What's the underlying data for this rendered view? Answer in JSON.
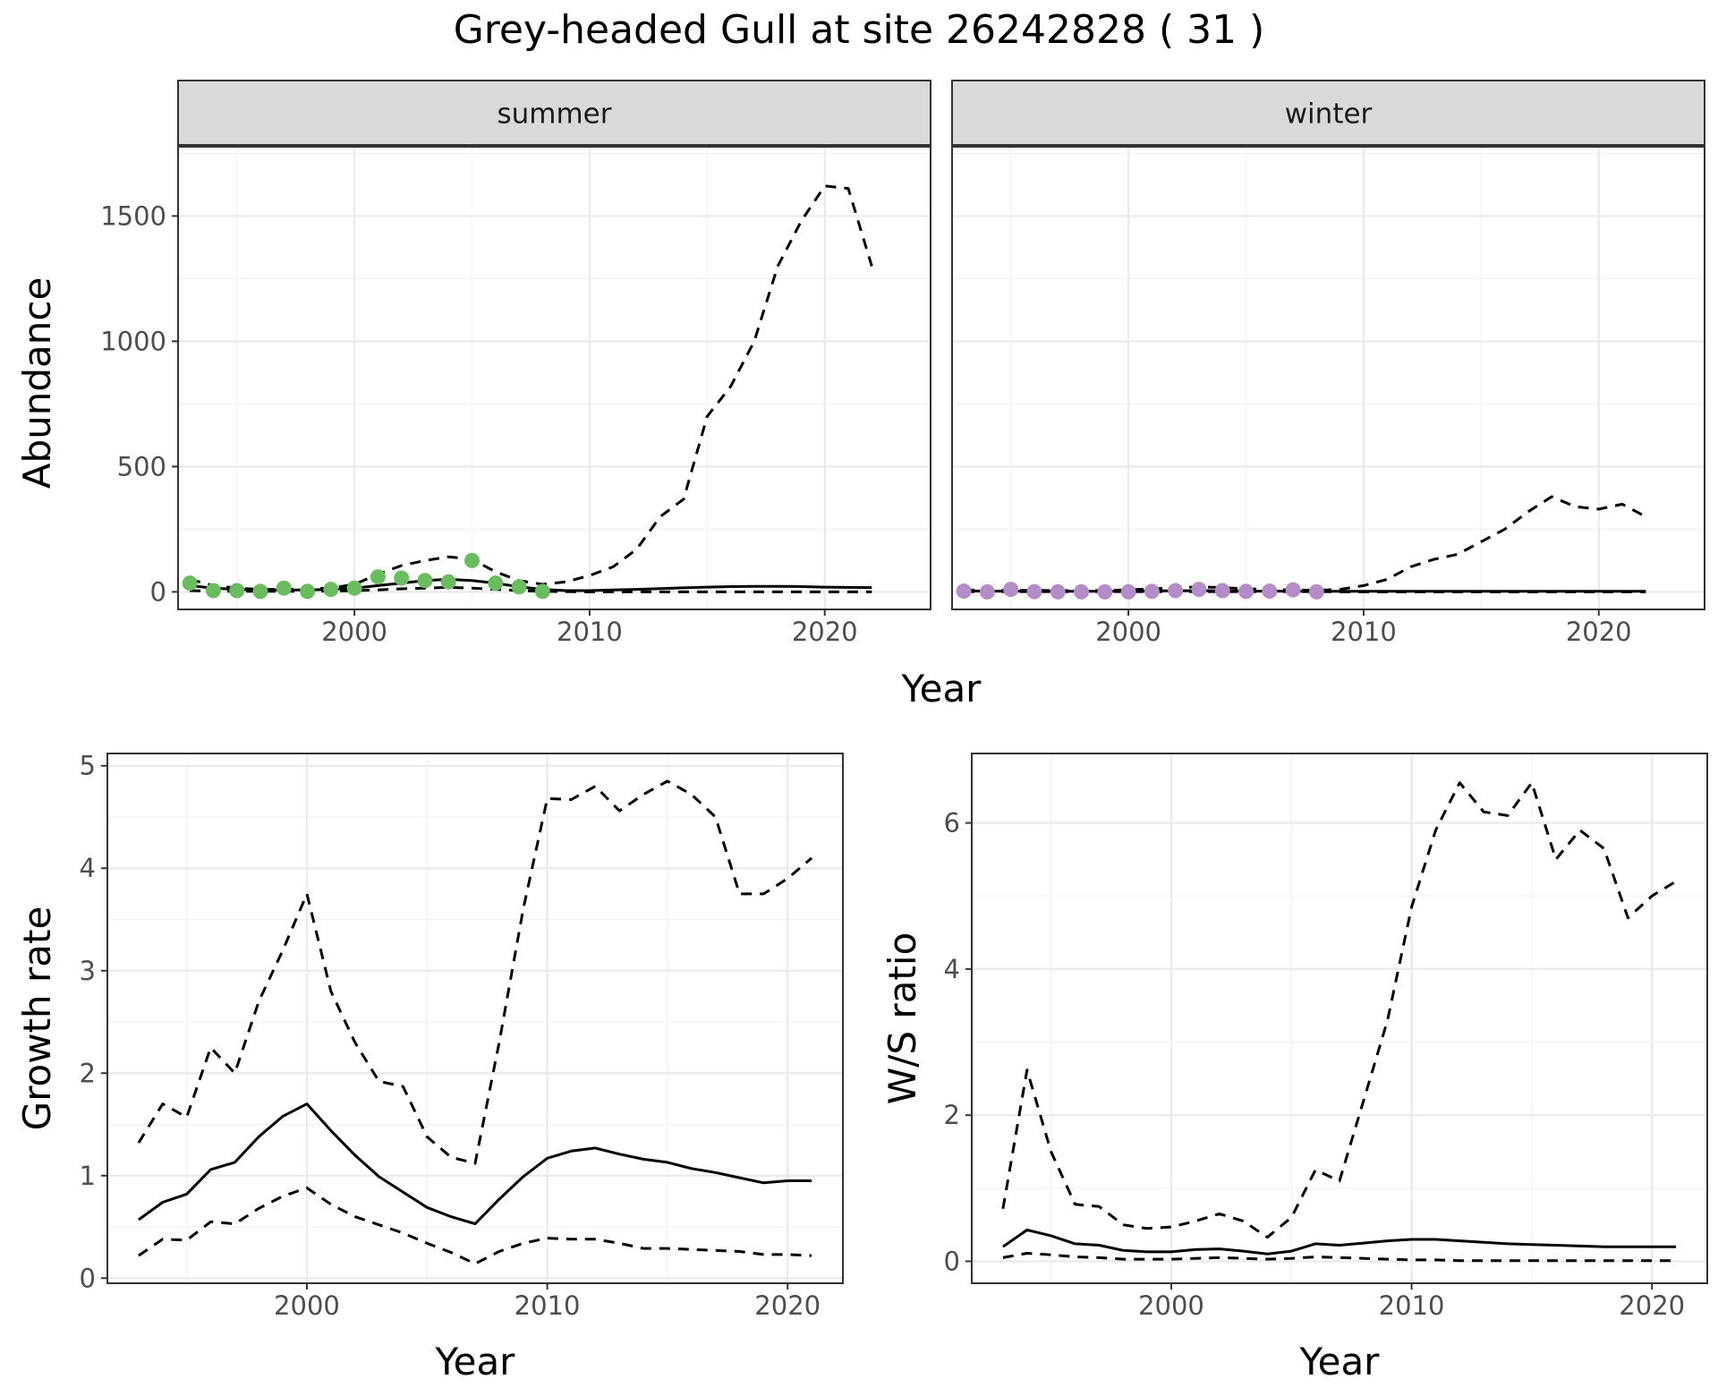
{
  "title": "Grey-headed Gull at site 26242828 ( 31 )",
  "colors": {
    "summer_points": "#6ABD5E",
    "winter_points": "#B48CC8",
    "line": "#000000",
    "grid_major": "#EBEBEB",
    "grid_minor": "#F2F2F2",
    "strip_fill": "#D9D9D9",
    "strip_border": "#333333",
    "axis_text": "#4D4D4D"
  },
  "chart_data": [
    {
      "type": "line",
      "name": "abundance",
      "facets": [
        "summer",
        "winter"
      ],
      "xlabel": "Year",
      "ylabel": "Abundance",
      "xlim": [
        1992.5,
        2024.5
      ],
      "ylim": [
        -70,
        1780
      ],
      "xticks": [
        2000,
        2010,
        2020
      ],
      "yticks": [
        0,
        500,
        1000,
        1500
      ],
      "grid": true,
      "panels": [
        {
          "strip": "summer",
          "point_color_key": "summer_points",
          "points": {
            "x": [
              1993,
              1994,
              1995,
              1996,
              1997,
              1998,
              1999,
              2000,
              2001,
              2002,
              2003,
              2004,
              2005,
              2006,
              2007,
              2008
            ],
            "y": [
              35,
              5,
              5,
              2,
              15,
              2,
              10,
              15,
              60,
              55,
              45,
              40,
              125,
              35,
              20,
              2
            ]
          },
          "series": [
            {
              "style": "solid",
              "x": [
                1993,
                1994,
                1995,
                1996,
                1997,
                1998,
                1999,
                2000,
                2001,
                2002,
                2003,
                2004,
                2005,
                2006,
                2007,
                2008,
                2009,
                2010,
                2011,
                2012,
                2013,
                2014,
                2015,
                2016,
                2017,
                2018,
                2019,
                2020,
                2021,
                2022
              ],
              "y": [
                25,
                15,
                10,
                8,
                8,
                8,
                10,
                15,
                25,
                35,
                45,
                50,
                45,
                35,
                20,
                10,
                5,
                5,
                8,
                10,
                13,
                16,
                19,
                21,
                22,
                22,
                21,
                19,
                18,
                17
              ]
            },
            {
              "style": "dashed",
              "x": [
                1993,
                1994,
                1995,
                1996,
                1997,
                1998,
                1999,
                2000,
                2001,
                2002,
                2003,
                2004,
                2005,
                2006,
                2007,
                2008,
                2009,
                2010,
                2011,
                2012,
                2013,
                2014,
                2015,
                2016,
                2017,
                2018,
                2019,
                2020,
                2021,
                2022
              ],
              "y": [
                50,
                25,
                15,
                10,
                10,
                12,
                15,
                30,
                70,
                105,
                125,
                140,
                130,
                80,
                45,
                30,
                40,
                65,
                100,
                170,
                300,
                370,
                700,
                820,
                1000,
                1300,
                1480,
                1620,
                1610,
                1300
              ]
            },
            {
              "style": "dashed",
              "x": [
                1993,
                1994,
                1995,
                1996,
                1997,
                1998,
                1999,
                2000,
                2001,
                2002,
                2003,
                2004,
                2005,
                2006,
                2007,
                2008,
                2009,
                2010,
                2011,
                2012,
                2013,
                2014,
                2015,
                2016,
                2017,
                2018,
                2019,
                2020,
                2021,
                2022
              ],
              "y": [
                5,
                3,
                2,
                2,
                2,
                2,
                3,
                5,
                8,
                12,
                15,
                18,
                15,
                10,
                5,
                2,
                1,
                0,
                0,
                0,
                0,
                0,
                0,
                0,
                0,
                0,
                0,
                0,
                0,
                0
              ]
            }
          ]
        },
        {
          "strip": "winter",
          "point_color_key": "winter_points",
          "points": {
            "x": [
              1993,
              1994,
              1995,
              1996,
              1997,
              1998,
              1999,
              2000,
              2001,
              2002,
              2003,
              2004,
              2005,
              2006,
              2007,
              2008
            ],
            "y": [
              3,
              0,
              10,
              1,
              0,
              0,
              0,
              0,
              2,
              5,
              10,
              5,
              2,
              3,
              8,
              0
            ]
          },
          "series": [
            {
              "style": "solid",
              "x": [
                1993,
                1994,
                1995,
                1996,
                1997,
                1998,
                1999,
                2000,
                2001,
                2002,
                2003,
                2004,
                2005,
                2006,
                2007,
                2008,
                2009,
                2010,
                2011,
                2012,
                2013,
                2014,
                2015,
                2016,
                2017,
                2018,
                2019,
                2020,
                2021,
                2022
              ],
              "y": [
                4,
                3,
                3,
                3,
                2,
                2,
                2,
                3,
                4,
                4,
                5,
                4,
                3,
                3,
                3,
                2,
                2,
                2,
                2,
                2,
                2,
                2,
                2,
                2,
                2,
                2,
                2,
                2,
                2,
                2
              ]
            },
            {
              "style": "dashed",
              "x": [
                1993,
                1994,
                1995,
                1996,
                1997,
                1998,
                1999,
                2000,
                2001,
                2002,
                2003,
                2004,
                2005,
                2006,
                2007,
                2008,
                2009,
                2010,
                2011,
                2012,
                2013,
                2014,
                2015,
                2016,
                2017,
                2018,
                2019,
                2020,
                2021,
                2022
              ],
              "y": [
                8,
                6,
                6,
                6,
                5,
                5,
                6,
                8,
                12,
                16,
                20,
                17,
                12,
                10,
                8,
                6,
                10,
                25,
                50,
                100,
                130,
                150,
                200,
                250,
                320,
                380,
                340,
                330,
                350,
                300
              ]
            },
            {
              "style": "dashed",
              "x": [
                1993,
                1994,
                1995,
                1996,
                1997,
                1998,
                1999,
                2000,
                2001,
                2002,
                2003,
                2004,
                2005,
                2006,
                2007,
                2008,
                2009,
                2010,
                2011,
                2012,
                2013,
                2014,
                2015,
                2016,
                2017,
                2018,
                2019,
                2020,
                2021,
                2022
              ],
              "y": [
                1,
                1,
                1,
                1,
                1,
                1,
                1,
                1,
                1,
                1,
                1,
                1,
                1,
                1,
                1,
                1,
                0,
                0,
                0,
                0,
                0,
                0,
                0,
                0,
                0,
                0,
                0,
                0,
                0,
                0
              ]
            }
          ]
        }
      ]
    },
    {
      "type": "line",
      "name": "growth",
      "xlabel": "Year",
      "ylabel": "Growth rate",
      "xlim": [
        1991.7,
        2022.3
      ],
      "ylim": [
        -0.05,
        5.12
      ],
      "xticks": [
        2000,
        2010,
        2020
      ],
      "yticks": [
        0,
        1,
        2,
        3,
        4,
        5
      ],
      "grid": true,
      "series": [
        {
          "style": "solid",
          "x": [
            1993,
            1994,
            1995,
            1996,
            1997,
            1998,
            1999,
            2000,
            2001,
            2002,
            2003,
            2004,
            2005,
            2006,
            2007,
            2008,
            2009,
            2010,
            2011,
            2012,
            2013,
            2014,
            2015,
            2016,
            2017,
            2018,
            2019,
            2020,
            2021
          ],
          "y": [
            0.57,
            0.74,
            0.82,
            1.06,
            1.13,
            1.38,
            1.58,
            1.7,
            1.44,
            1.2,
            0.99,
            0.84,
            0.69,
            0.6,
            0.53,
            0.77,
            0.99,
            1.17,
            1.24,
            1.27,
            1.21,
            1.16,
            1.13,
            1.07,
            1.03,
            0.98,
            0.93,
            0.95,
            0.95
          ]
        },
        {
          "style": "dashed",
          "x": [
            1993,
            1994,
            1995,
            1996,
            1997,
            1998,
            1999,
            2000,
            2001,
            2002,
            2003,
            2004,
            2005,
            2006,
            2007,
            2008,
            2009,
            2010,
            2011,
            2012,
            2013,
            2014,
            2015,
            2016,
            2017,
            2018,
            2019,
            2020,
            2021
          ],
          "y": [
            1.32,
            1.7,
            1.57,
            2.25,
            2.0,
            2.7,
            3.2,
            3.75,
            2.8,
            2.3,
            1.92,
            1.87,
            1.38,
            1.18,
            1.12,
            2.3,
            3.6,
            4.68,
            4.67,
            4.8,
            4.56,
            4.72,
            4.85,
            4.72,
            4.5,
            3.75,
            3.75,
            3.9,
            4.1
          ]
        },
        {
          "style": "dashed",
          "x": [
            1993,
            1994,
            1995,
            1996,
            1997,
            1998,
            1999,
            2000,
            2001,
            2002,
            2003,
            2004,
            2005,
            2006,
            2007,
            2008,
            2009,
            2010,
            2011,
            2012,
            2013,
            2014,
            2015,
            2016,
            2017,
            2018,
            2019,
            2020,
            2021
          ],
          "y": [
            0.22,
            0.38,
            0.37,
            0.55,
            0.53,
            0.68,
            0.8,
            0.88,
            0.72,
            0.6,
            0.52,
            0.44,
            0.34,
            0.25,
            0.14,
            0.26,
            0.34,
            0.39,
            0.38,
            0.38,
            0.34,
            0.29,
            0.29,
            0.28,
            0.27,
            0.26,
            0.23,
            0.23,
            0.22
          ]
        }
      ]
    },
    {
      "type": "line",
      "name": "ws_ratio",
      "xlabel": "Year",
      "ylabel": "W/S ratio",
      "xlim": [
        1991.7,
        2022.3
      ],
      "ylim": [
        -0.3,
        6.95
      ],
      "xticks": [
        2000,
        2010,
        2020
      ],
      "yticks": [
        0,
        2,
        4,
        6
      ],
      "grid": true,
      "series": [
        {
          "style": "solid",
          "x": [
            1993,
            1994,
            1995,
            1996,
            1997,
            1998,
            1999,
            2000,
            2001,
            2002,
            2003,
            2004,
            2005,
            2006,
            2007,
            2008,
            2009,
            2010,
            2011,
            2012,
            2013,
            2014,
            2015,
            2016,
            2017,
            2018,
            2019,
            2020,
            2021
          ],
          "y": [
            0.2,
            0.43,
            0.35,
            0.24,
            0.22,
            0.15,
            0.13,
            0.13,
            0.16,
            0.17,
            0.14,
            0.1,
            0.14,
            0.24,
            0.22,
            0.25,
            0.28,
            0.3,
            0.3,
            0.28,
            0.26,
            0.24,
            0.23,
            0.22,
            0.21,
            0.2,
            0.2,
            0.2,
            0.2
          ]
        },
        {
          "style": "dashed",
          "x": [
            1993,
            1994,
            1995,
            1996,
            1997,
            1998,
            1999,
            2000,
            2001,
            2002,
            2003,
            2004,
            2005,
            2006,
            2007,
            2008,
            2009,
            2010,
            2011,
            2012,
            2013,
            2014,
            2015,
            2016,
            2017,
            2018,
            2019,
            2020,
            2021
          ],
          "y": [
            0.72,
            2.62,
            1.5,
            0.78,
            0.75,
            0.5,
            0.45,
            0.47,
            0.55,
            0.65,
            0.55,
            0.33,
            0.6,
            1.25,
            1.1,
            2.2,
            3.3,
            4.85,
            5.9,
            6.55,
            6.15,
            6.1,
            6.55,
            5.5,
            5.9,
            5.65,
            4.7,
            5.0,
            5.2
          ]
        },
        {
          "style": "dashed",
          "x": [
            1993,
            1994,
            1995,
            1996,
            1997,
            1998,
            1999,
            2000,
            2001,
            2002,
            2003,
            2004,
            2005,
            2006,
            2007,
            2008,
            2009,
            2010,
            2011,
            2012,
            2013,
            2014,
            2015,
            2016,
            2017,
            2018,
            2019,
            2020,
            2021
          ],
          "y": [
            0.05,
            0.11,
            0.09,
            0.06,
            0.05,
            0.03,
            0.03,
            0.03,
            0.04,
            0.05,
            0.04,
            0.03,
            0.04,
            0.06,
            0.05,
            0.04,
            0.03,
            0.02,
            0.02,
            0.01,
            0.01,
            0.01,
            0.01,
            0.01,
            0.01,
            0.01,
            0.01,
            0.01,
            0.01
          ]
        }
      ]
    }
  ]
}
